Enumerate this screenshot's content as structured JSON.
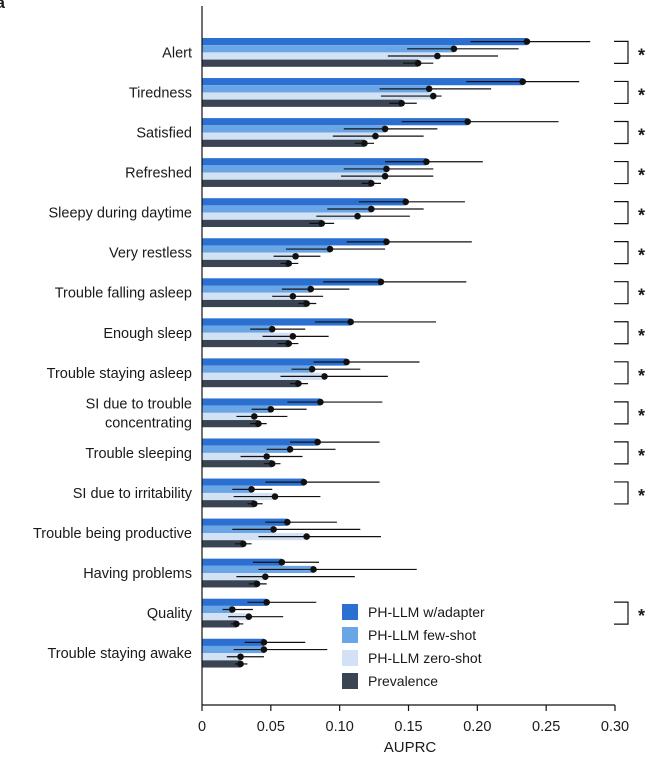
{
  "panel_letter": "a",
  "chart_data": {
    "type": "bar",
    "orientation": "horizontal",
    "xlabel": "AUPRC",
    "xlim": [
      0,
      0.3
    ],
    "xticks": [
      0,
      0.05,
      0.1,
      0.15,
      0.2,
      0.25,
      0.3
    ],
    "xtick_labels": [
      "0",
      "0.05",
      "0.10",
      "0.15",
      "0.20",
      "0.25",
      "0.30"
    ],
    "legend_position": "lower-right",
    "categories": [
      "Alert",
      "Tiredness",
      "Satisfied",
      "Refreshed",
      "Sleepy during daytime",
      "Very restless",
      "Trouble falling asleep",
      "Enough sleep",
      "Trouble staying asleep",
      "SI due to trouble concentrating",
      "Trouble sleeping",
      "SI due to irritability",
      "Trouble being productive",
      "Having problems",
      "Quality",
      "Trouble staying awake"
    ],
    "category_label_lines": [
      [
        "Alert"
      ],
      [
        "Tiredness"
      ],
      [
        "Satisfied"
      ],
      [
        "Refreshed"
      ],
      [
        "Sleepy during daytime"
      ],
      [
        "Very restless"
      ],
      [
        "Trouble falling asleep"
      ],
      [
        "Enough sleep"
      ],
      [
        "Trouble staying asleep"
      ],
      [
        "SI due to trouble",
        "concentrating"
      ],
      [
        "Trouble sleeping"
      ],
      [
        "SI due to irritability"
      ],
      [
        "Trouble being productive"
      ],
      [
        "Having problems"
      ],
      [
        "Quality"
      ],
      [
        "Trouble staying awake"
      ]
    ],
    "series": [
      {
        "name": "PH-LLM w/adapter",
        "color": "#2b6fd0",
        "values": [
          0.236,
          0.233,
          0.193,
          0.163,
          0.148,
          0.134,
          0.13,
          0.108,
          0.105,
          0.086,
          0.084,
          0.074,
          0.062,
          0.058,
          0.047,
          0.045
        ],
        "ci_low": [
          0.195,
          0.192,
          0.145,
          0.133,
          0.114,
          0.105,
          0.088,
          0.082,
          0.081,
          0.062,
          0.064,
          0.046,
          0.046,
          0.037,
          0.033,
          0.031
        ],
        "ci_high": [
          0.282,
          0.274,
          0.259,
          0.204,
          0.191,
          0.196,
          0.192,
          0.17,
          0.158,
          0.131,
          0.129,
          0.129,
          0.098,
          0.085,
          0.083,
          0.075
        ]
      },
      {
        "name": "PH-LLM few-shot",
        "color": "#6aa5e6",
        "values": [
          0.183,
          0.165,
          0.133,
          0.134,
          0.123,
          0.093,
          0.079,
          0.051,
          0.08,
          0.05,
          0.064,
          0.036,
          0.052,
          0.081,
          0.022,
          0.045
        ],
        "ci_low": [
          0.149,
          0.129,
          0.103,
          0.103,
          0.091,
          0.061,
          0.058,
          0.035,
          0.065,
          0.036,
          0.047,
          0.022,
          0.022,
          0.041,
          0.015,
          0.023
        ],
        "ci_high": [
          0.23,
          0.21,
          0.171,
          0.168,
          0.161,
          0.133,
          0.107,
          0.075,
          0.115,
          0.076,
          0.097,
          0.051,
          0.115,
          0.156,
          0.037,
          0.091
        ]
      },
      {
        "name": "PH-LLM zero-shot",
        "color": "#d3e1f5",
        "values": [
          0.171,
          0.168,
          0.126,
          0.133,
          0.113,
          0.068,
          0.066,
          0.066,
          0.089,
          0.038,
          0.047,
          0.053,
          0.076,
          0.046,
          0.034,
          0.028
        ],
        "ci_low": [
          0.135,
          0.13,
          0.095,
          0.101,
          0.083,
          0.052,
          0.051,
          0.044,
          0.057,
          0.025,
          0.028,
          0.023,
          0.041,
          0.025,
          0.019,
          0.018
        ],
        "ci_high": [
          0.215,
          0.174,
          0.161,
          0.168,
          0.151,
          0.086,
          0.088,
          0.092,
          0.135,
          0.062,
          0.073,
          0.086,
          0.13,
          0.111,
          0.059,
          0.045
        ]
      },
      {
        "name": "Prevalence",
        "color": "#3a4453",
        "values": [
          0.157,
          0.145,
          0.118,
          0.123,
          0.087,
          0.063,
          0.076,
          0.063,
          0.07,
          0.041,
          0.051,
          0.038,
          0.03,
          0.04,
          0.025,
          0.028
        ],
        "ci_low": [
          0.146,
          0.136,
          0.111,
          0.116,
          0.078,
          0.057,
          0.07,
          0.055,
          0.064,
          0.035,
          0.045,
          0.033,
          0.024,
          0.034,
          0.021,
          0.024
        ],
        "ci_high": [
          0.168,
          0.156,
          0.125,
          0.13,
          0.096,
          0.07,
          0.083,
          0.07,
          0.077,
          0.047,
          0.057,
          0.044,
          0.036,
          0.047,
          0.03,
          0.033
        ]
      }
    ],
    "significance": [
      true,
      true,
      true,
      true,
      true,
      true,
      true,
      true,
      true,
      true,
      true,
      true,
      false,
      false,
      true,
      false
    ],
    "significance_marker": "*"
  }
}
